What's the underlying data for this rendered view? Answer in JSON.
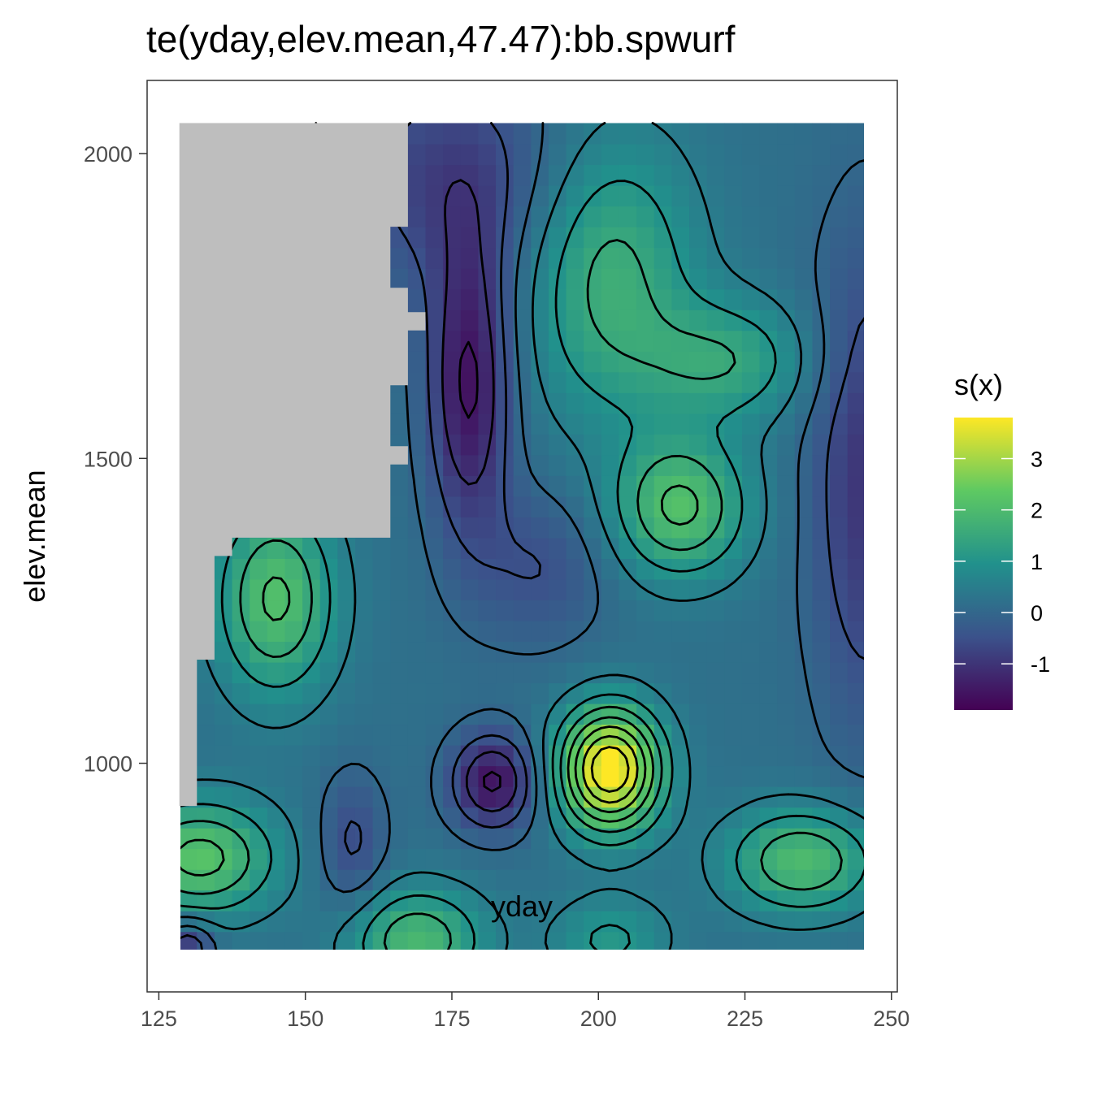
{
  "chart_data": {
    "type": "heatmap",
    "title": "te(yday,elev.mean,47.47):bb.spwurf",
    "xlabel": "yday",
    "ylabel": "elev.mean",
    "xlim": [
      123,
      251
    ],
    "ylim": [
      625,
      2120
    ],
    "x_ticks": [
      125,
      150,
      175,
      200,
      225,
      250
    ],
    "x_tick_labels": [
      "125",
      "150",
      "175",
      "200",
      "225",
      "250"
    ],
    "y_ticks": [
      1000,
      1500,
      2000
    ],
    "y_tick_labels": [
      "1000",
      "1500",
      "2000"
    ],
    "x_range": [
      128.5,
      248.5
    ],
    "y_range": [
      690,
      2050
    ],
    "grid": false,
    "legend": {
      "title": "s(x)",
      "placement": "right",
      "min": -1.9,
      "max": 3.8,
      "ticks": [
        -1,
        0,
        1,
        2,
        3
      ],
      "tick_labels": [
        "-1",
        "0",
        "1",
        "2",
        "3"
      ]
    },
    "colors": {
      "palette": [
        "#440154",
        "#3b528b",
        "#21918c",
        "#5ec962",
        "#fde725"
      ],
      "na": "#bebebe",
      "contour": "#000000"
    },
    "features": [
      {
        "x": 178,
        "y": 1620,
        "value": -1.8,
        "sx": 5,
        "sy": 170
      },
      {
        "x": 182,
        "y": 970,
        "value": -1.8,
        "sx": 5,
        "sy": 55
      },
      {
        "x": 158,
        "y": 870,
        "value": -0.8,
        "sx": 4,
        "sy": 80
      },
      {
        "x": 190,
        "y": 1320,
        "value": -0.7,
        "sx": 8,
        "sy": 90
      },
      {
        "x": 246,
        "y": 1460,
        "value": -1.2,
        "sx": 7,
        "sy": 280
      },
      {
        "x": 175,
        "y": 1960,
        "value": -1.0,
        "sx": 14,
        "sy": 130
      },
      {
        "x": 202,
        "y": 990,
        "value": 3.8,
        "sx": 6,
        "sy": 70
      },
      {
        "x": 214,
        "y": 1420,
        "value": 1.9,
        "sx": 8,
        "sy": 80
      },
      {
        "x": 235,
        "y": 840,
        "value": 1.8,
        "sx": 9,
        "sy": 60
      },
      {
        "x": 145,
        "y": 1270,
        "value": 1.9,
        "sx": 7,
        "sy": 110
      },
      {
        "x": 132,
        "y": 845,
        "value": 2.0,
        "sx": 9,
        "sy": 65
      },
      {
        "x": 169,
        "y": 710,
        "value": 1.7,
        "sx": 8,
        "sy": 60
      },
      {
        "x": 202,
        "y": 710,
        "value": 0.9,
        "sx": 7,
        "sy": 50
      },
      {
        "x": 202,
        "y": 1800,
        "value": 1.5,
        "sx": 10,
        "sy": 160
      },
      {
        "x": 222,
        "y": 1660,
        "value": 1.2,
        "sx": 10,
        "sy": 70
      },
      {
        "x": 130,
        "y": 700,
        "value": -1.2,
        "sx": 3,
        "sy": 30
      }
    ],
    "baseline": 0.2,
    "missing_region": [
      [
        128.5,
        2050
      ],
      [
        167.5,
        2050
      ],
      [
        167.5,
        1880
      ],
      [
        164.5,
        1880
      ],
      [
        164.5,
        1780
      ],
      [
        167.5,
        1780
      ],
      [
        167.5,
        1740
      ],
      [
        170.5,
        1740
      ],
      [
        170.5,
        1710
      ],
      [
        167.5,
        1710
      ],
      [
        167.5,
        1620
      ],
      [
        164.5,
        1620
      ],
      [
        164.5,
        1520
      ],
      [
        167.5,
        1520
      ],
      [
        167.5,
        1490
      ],
      [
        164.5,
        1490
      ],
      [
        164.5,
        1370
      ],
      [
        137.5,
        1370
      ],
      [
        137.5,
        1340
      ],
      [
        134.5,
        1340
      ],
      [
        134.5,
        1170
      ],
      [
        131.5,
        1170
      ],
      [
        131.5,
        930
      ],
      [
        128.5,
        930
      ]
    ],
    "contour_levels": [
      -1.5,
      -1.0,
      -0.5,
      0.0,
      0.5,
      1.0,
      1.5,
      2.0,
      2.5,
      3.0,
      3.5
    ]
  }
}
